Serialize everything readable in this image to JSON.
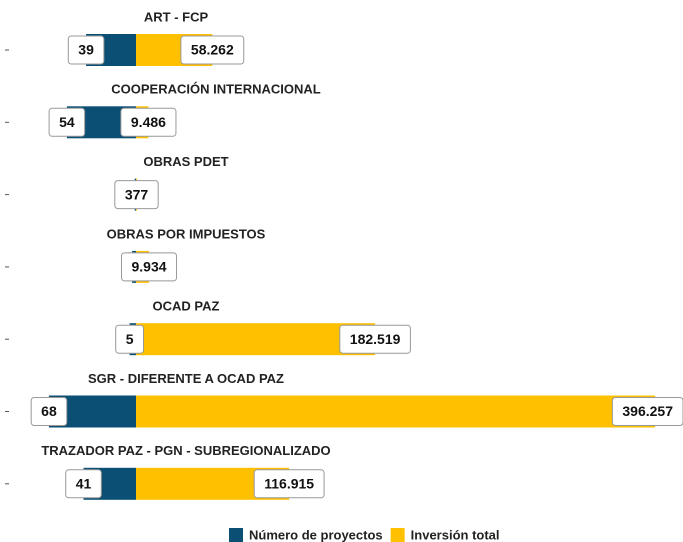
{
  "chart_data": {
    "type": "diverging-bar",
    "categories": [
      "ART - FCP",
      "COOPERACIÓN INTERNACIONAL",
      "OBRAS PDET",
      "OBRAS POR IMPUESTOS",
      "OCAD PAZ",
      "SGR - DIFERENTE A OCAD PAZ",
      "TRAZADOR PAZ - PGN - SUBREGIONALIZADO"
    ],
    "series": [
      {
        "name": "Número de proyectos",
        "color": "#0b4f74",
        "side": "left",
        "values": [
          39,
          54,
          1,
          3,
          5,
          68,
          41
        ],
        "value_labels": [
          "39",
          "54",
          null,
          "",
          "5",
          "68",
          "41"
        ]
      },
      {
        "name": "Inversión total",
        "color": "#ffc000",
        "side": "right",
        "values": [
          58262,
          9486,
          377,
          9934,
          182519,
          396257,
          116915
        ],
        "value_labels": [
          "58.262",
          "9.486",
          "377",
          "9.934",
          "182.519",
          "396.257",
          "116.915"
        ]
      }
    ]
  }
}
